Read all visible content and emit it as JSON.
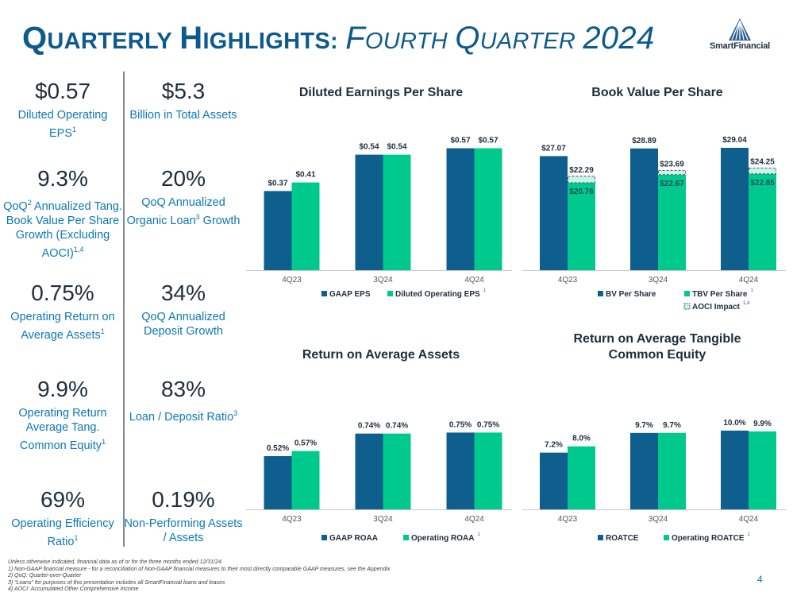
{
  "header": {
    "title_q": "Q",
    "title_uarterly": "UARTERLY",
    "title_h": "H",
    "title_ighlights": "IGHLIGHTS:",
    "title_f": "F",
    "title_ourth": "OURTH",
    "title_q2": "Q",
    "title_uarter": "UARTER",
    "title_year": "2024",
    "logo_text": "SmartFinancial"
  },
  "metrics": [
    {
      "value": "$0.57",
      "label": "Diluted Operating EPS",
      "sup": "1"
    },
    {
      "value": "$5.3",
      "label": "Billion in Total Assets",
      "sup": ""
    },
    {
      "value": "9.3%",
      "label_a": "QoQ",
      "sup_a": "2",
      "label_b": " Annualized Tang. Book Value Per Share Growth (Excluding AOCI)",
      "sup_b": "1,4"
    },
    {
      "value": "20%",
      "label_a": "QoQ Annualized Organic Loan",
      "sup_a": "3",
      "label_b": " Growth",
      "sup_b": ""
    },
    {
      "value": "0.75%",
      "label": "Operating Return on Average Assets",
      "sup": "1"
    },
    {
      "value": "34%",
      "label": "QoQ Annualized Deposit Growth",
      "sup": ""
    },
    {
      "value": "9.9%",
      "label": "Operating Return Average Tang. Common Equity",
      "sup": "1"
    },
    {
      "value": "83%",
      "label": "Loan / Deposit Ratio",
      "sup": "3"
    },
    {
      "value": "69%",
      "label": "Operating Efficiency Ratio",
      "sup": "1"
    },
    {
      "value": "0.19%",
      "label": "Non-Performing Assets / Assets",
      "sup": ""
    }
  ],
  "colors": {
    "dark": "#0e5e8e",
    "green": "#00c98d",
    "aoci": "#c9f4ec",
    "axis": "#c8c8c8"
  },
  "chart_data": [
    {
      "type": "bar",
      "title": "Diluted Earnings Per Share",
      "categories": [
        "4Q23",
        "3Q24",
        "4Q24"
      ],
      "ylim": [
        0,
        0.65
      ],
      "series": [
        {
          "name": "GAAP EPS",
          "values": [
            0.37,
            0.54,
            0.57
          ],
          "labels": [
            "$0.37",
            "$0.54",
            "$0.57"
          ],
          "color": "#0e5e8e"
        },
        {
          "name": "Diluted Operating EPS",
          "sup": "1",
          "values": [
            0.41,
            0.54,
            0.57
          ],
          "labels": [
            "$0.41",
            "$0.54",
            "$0.57"
          ],
          "color": "#00c98d"
        }
      ]
    },
    {
      "type": "bar",
      "title": "Book Value Per Share",
      "categories": [
        "4Q23",
        "3Q24",
        "4Q24"
      ],
      "ylim": [
        0,
        33
      ],
      "series": [
        {
          "name": "BV Per Share",
          "values": [
            27.07,
            28.89,
            29.04
          ],
          "labels": [
            "$27.07",
            "$28.89",
            "$29.04"
          ],
          "color": "#0e5e8e"
        },
        {
          "name": "TBV Per Share",
          "sup": "1",
          "values": [
            20.76,
            22.67,
            22.85
          ],
          "labels": [
            "$20.76",
            "$22.67",
            "$22.85"
          ],
          "color": "#00c98d"
        }
      ],
      "stack": {
        "name": "AOCI Impact",
        "sup": "1,4",
        "totals": [
          22.29,
          23.69,
          24.25
        ],
        "labels": [
          "$22.29",
          "$23.69",
          "$24.25"
        ]
      }
    },
    {
      "type": "bar",
      "title": "Return on Average Assets",
      "categories": [
        "4Q23",
        "3Q24",
        "4Q24"
      ],
      "ylim": [
        0,
        0.9
      ],
      "series": [
        {
          "name": "GAAP ROAA",
          "values": [
            0.52,
            0.74,
            0.75
          ],
          "labels": [
            "0.52%",
            "0.74%",
            "0.75%"
          ],
          "color": "#0e5e8e"
        },
        {
          "name": "Operating ROAA",
          "sup": "1",
          "values": [
            0.57,
            0.74,
            0.75
          ],
          "labels": [
            "0.57%",
            "0.74%",
            "0.75%"
          ],
          "color": "#00c98d"
        }
      ]
    },
    {
      "type": "bar",
      "title": "Return on Average Tangible Common Equity",
      "categories": [
        "4Q23",
        "3Q24",
        "4Q24"
      ],
      "ylim": [
        0,
        11.7
      ],
      "series": [
        {
          "name": "ROATCE",
          "values": [
            7.2,
            9.7,
            10.0
          ],
          "labels": [
            "7.2%",
            "9.7%",
            "10.0%"
          ],
          "color": "#0e5e8e"
        },
        {
          "name": "Operating ROATCE",
          "sup": "1",
          "values": [
            8.0,
            9.7,
            9.9
          ],
          "labels": [
            "8.0%",
            "9.7%",
            "9.9%"
          ],
          "color": "#00c98d"
        }
      ]
    }
  ],
  "footer": {
    "note0": "Unless otherwise indicated, financial data as of or for the three months ended 12/31/24",
    "note1": "1)    Non-GAAP financial measure - for a reconciliation of Non-GAAP financial measures to their most directly comparable GAAP measures, see the Appendix",
    "note2": "2)    QoQ: Quarter-over-Quarter",
    "note3": "3)    “Loans” for purposes of this presentation includes all SmartFinancial loans and leases",
    "note4": "4)    AOCI: Accumulated Other Comprehensive Income",
    "page": "4"
  }
}
